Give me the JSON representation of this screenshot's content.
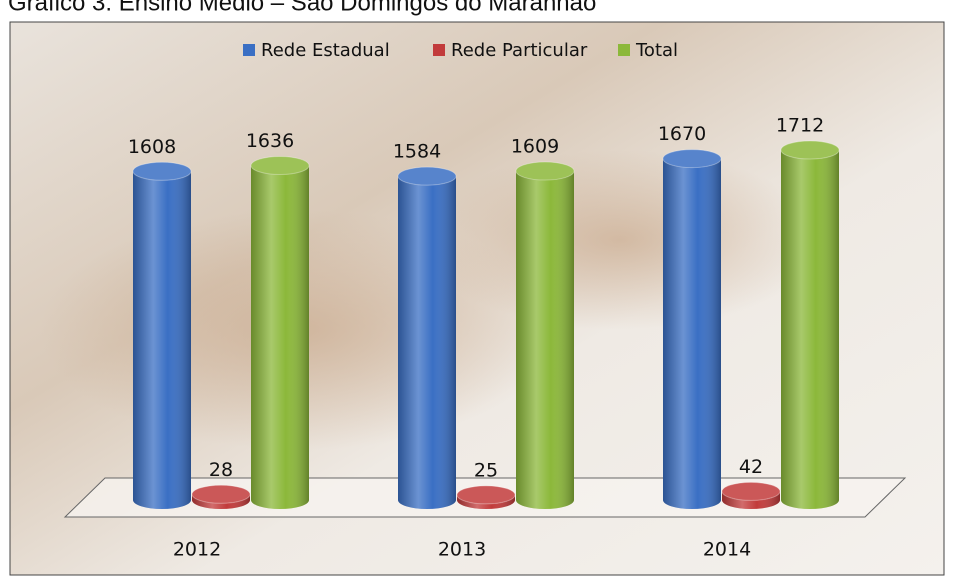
{
  "chart_data": {
    "type": "bar3d",
    "title": "Gráfico 3: Ensino Médio – São Domingos do Maranhão",
    "categories": [
      "2012",
      "2013",
      "2014"
    ],
    "series": [
      {
        "name": "Rede Estadual",
        "color": "#3a6fc4",
        "values": [
          1608,
          1584,
          1670
        ]
      },
      {
        "name": "Rede Particular",
        "color": "#c23b3b",
        "values": [
          28,
          25,
          42
        ]
      },
      {
        "name": "Total",
        "color": "#8cb83a",
        "values": [
          1636,
          1609,
          1712
        ]
      }
    ],
    "legend": "top"
  }
}
